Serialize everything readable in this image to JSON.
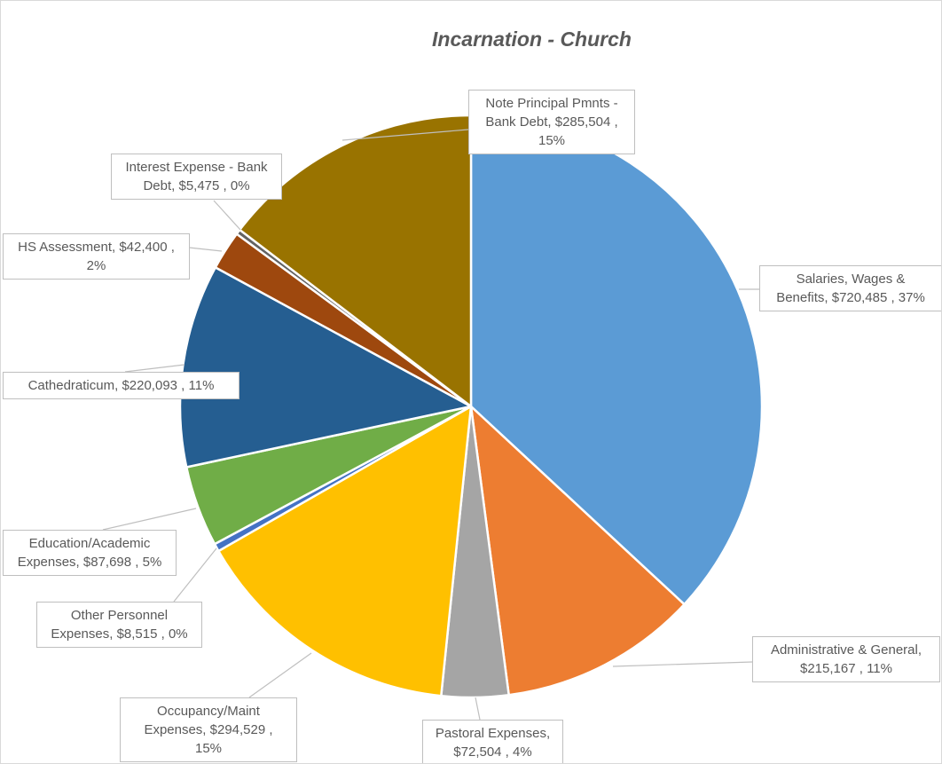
{
  "chart_data": {
    "type": "pie",
    "title": "Incarnation - Church",
    "start_angle": "12 o'clock",
    "direction": "clockwise",
    "slices": [
      {
        "label": "Salaries, Wages & Benefits",
        "value": 720485,
        "percent": "37%",
        "color": "#5B9BD5",
        "lines": [
          "Salaries, Wages &",
          "Benefits,  $720,485 , 37%"
        ]
      },
      {
        "label": "Administrative & General",
        "value": 215167,
        "percent": "11%",
        "color": "#ED7D31",
        "lines": [
          "Administrative & General,",
          "$215,167 , 11%"
        ]
      },
      {
        "label": "Pastoral Expenses",
        "value": 72504,
        "percent": "4%",
        "color": "#A5A5A5",
        "lines": [
          "Pastoral Expenses,",
          "$72,504 , 4%"
        ]
      },
      {
        "label": "Occupancy/Maint Expenses",
        "value": 294529,
        "percent": "15%",
        "color": "#FFC000",
        "lines": [
          "Occupancy/Maint",
          "Expenses,  $294,529 ,",
          "15%"
        ]
      },
      {
        "label": "Other Personnel Expenses",
        "value": 8515,
        "percent": "0%",
        "color": "#4472C4",
        "lines": [
          "Other Personnel",
          "Expenses,  $8,515 , 0%"
        ]
      },
      {
        "label": "Education/Academic Expenses",
        "value": 87698,
        "percent": "5%",
        "color": "#70AD47",
        "lines": [
          "Education/Academic",
          "Expenses,  $87,698 , 5%"
        ]
      },
      {
        "label": "Cathedraticum",
        "value": 220093,
        "percent": "11%",
        "color": "#255E91",
        "lines": [
          "Cathedraticum,  $220,093 , 11%"
        ]
      },
      {
        "label": "HS Assessment",
        "value": 42400,
        "percent": "2%",
        "color": "#9E480E",
        "lines": [
          "HS Assessment,  $42,400 ,",
          "2%"
        ]
      },
      {
        "label": "Interest Expense - Bank Debt",
        "value": 5475,
        "percent": "0%",
        "color": "#636363",
        "lines": [
          "Interest Expense - Bank",
          "Debt,  $5,475 , 0%"
        ]
      },
      {
        "label": "Note Principal Pmnts - Bank Debt",
        "value": 285504,
        "percent": "15%",
        "color": "#997300",
        "lines": [
          "Note Principal Pmnts -",
          "Bank Debt,  $285,504 ,",
          "15%"
        ]
      }
    ]
  }
}
